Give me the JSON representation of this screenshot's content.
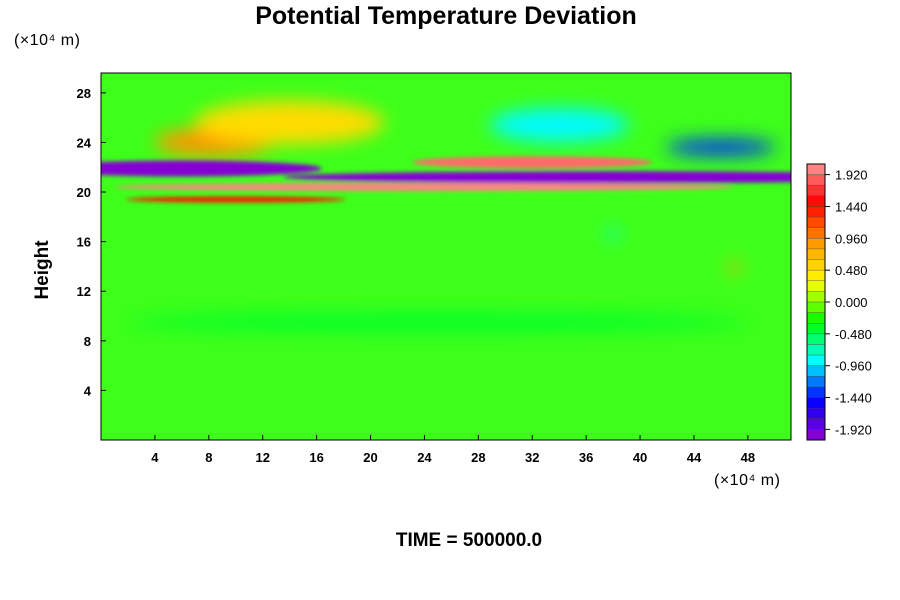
{
  "header": {
    "title": "Potential Temperature Deviation"
  },
  "footer": {
    "time_label": "TIME = 500000.0"
  },
  "chart_data": {
    "type": "heatmap",
    "title": "Potential Temperature Deviation",
    "xlabel": "",
    "ylabel": "Height",
    "x_unit": "(×10⁴ m)",
    "y_unit": "(×10⁴ m)",
    "xlim": [
      0,
      51.2
    ],
    "ylim": [
      0,
      29.6
    ],
    "x_ticks": [
      "4",
      "8",
      "12",
      "16",
      "20",
      "24",
      "28",
      "32",
      "36",
      "40",
      "44",
      "48"
    ],
    "y_ticks": [
      "4",
      "8",
      "12",
      "16",
      "20",
      "24",
      "28"
    ],
    "colorbar": {
      "min": -2.08,
      "max": 2.08,
      "tick_labels": [
        "1.920",
        "1.440",
        "0.960",
        "0.480",
        "0.000",
        "-0.480",
        "-0.960",
        "-1.440",
        "-1.920"
      ],
      "colors": [
        "#ff9999",
        "#ff0000",
        "#ff9900",
        "#ffff00",
        "#00ff00",
        "#00ffff",
        "#0000ff",
        "#9900cc"
      ]
    },
    "features": [
      {
        "x": 8.4,
        "y": 24.0,
        "value": 0.9
      },
      {
        "x": 14,
        "y": 25.6,
        "value": 0.5
      },
      {
        "x": 34,
        "y": 25.4,
        "value": -0.9
      },
      {
        "x": 46,
        "y": 23.6,
        "value": -1.4
      },
      {
        "x": 32,
        "y": 22.4,
        "value": 1.9
      },
      {
        "x": 6,
        "y": 21.9,
        "value": -2.0
      },
      {
        "x": 38,
        "y": 21.2,
        "value": -2.0
      },
      {
        "x": 24,
        "y": 20.4,
        "value": 2.0
      },
      {
        "x": 10,
        "y": 19.4,
        "value": 1.4
      },
      {
        "x": 38,
        "y": 16.6,
        "value": -0.9
      },
      {
        "x": 47,
        "y": 13.9,
        "value": 0.8
      },
      {
        "x": 25,
        "y": 9.5,
        "value": -0.4
      }
    ],
    "time": "500000.0"
  }
}
